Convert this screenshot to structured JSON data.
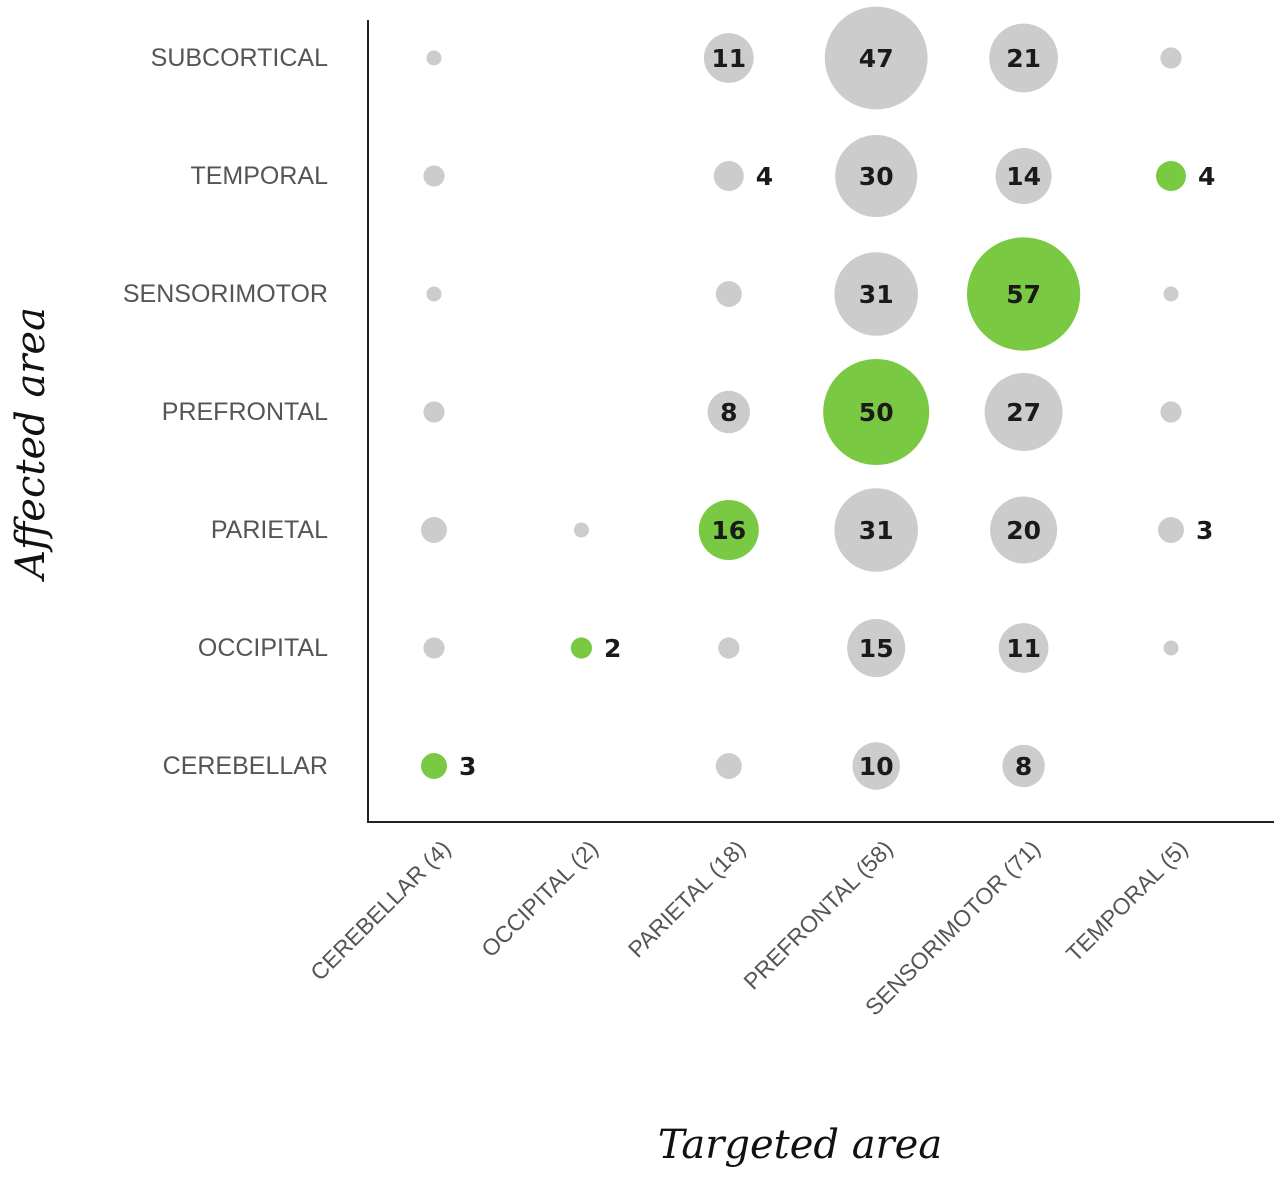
{
  "chart_data": {
    "type": "bubble-matrix",
    "xlabel": "Targeted area",
    "ylabel": "Affected area",
    "x_categories": [
      "CEREBELLAR (4)",
      "OCCIPITAL (2)",
      "PARIETAL (18)",
      "PREFRONTAL (58)",
      "SENSORIMOTOR (71)",
      "TEMPORAL (5)"
    ],
    "y_categories": [
      "SUBCORTICAL",
      "TEMPORAL",
      "SENSORIMOTOR",
      "PREFRONTAL",
      "PARIETAL",
      "OCCIPITAL",
      "CEREBELLAR"
    ],
    "colors": {
      "match": "#7ac943",
      "other": "#cccccc"
    },
    "cells": [
      {
        "x": "CEREBELLAR (4)",
        "y": "SUBCORTICAL",
        "value": 1,
        "shown": false,
        "match": false
      },
      {
        "x": "PARIETAL (18)",
        "y": "SUBCORTICAL",
        "value": 11,
        "shown": true,
        "match": false
      },
      {
        "x": "PREFRONTAL (58)",
        "y": "SUBCORTICAL",
        "value": 47,
        "shown": true,
        "match": false
      },
      {
        "x": "SENSORIMOTOR (71)",
        "y": "SUBCORTICAL",
        "value": 21,
        "shown": true,
        "match": false
      },
      {
        "x": "TEMPORAL (5)",
        "y": "SUBCORTICAL",
        "value": 2,
        "shown": false,
        "match": false
      },
      {
        "x": "CEREBELLAR (4)",
        "y": "TEMPORAL",
        "value": 2,
        "shown": false,
        "match": false
      },
      {
        "x": "PARIETAL (18)",
        "y": "TEMPORAL",
        "value": 4,
        "shown": true,
        "match": false
      },
      {
        "x": "PREFRONTAL (58)",
        "y": "TEMPORAL",
        "value": 30,
        "shown": true,
        "match": false
      },
      {
        "x": "SENSORIMOTOR (71)",
        "y": "TEMPORAL",
        "value": 14,
        "shown": true,
        "match": false
      },
      {
        "x": "TEMPORAL (5)",
        "y": "TEMPORAL",
        "value": 4,
        "shown": true,
        "match": true
      },
      {
        "x": "CEREBELLAR (4)",
        "y": "SENSORIMOTOR",
        "value": 1,
        "shown": false,
        "match": false
      },
      {
        "x": "PARIETAL (18)",
        "y": "SENSORIMOTOR",
        "value": 3,
        "shown": false,
        "match": false
      },
      {
        "x": "PREFRONTAL (58)",
        "y": "SENSORIMOTOR",
        "value": 31,
        "shown": true,
        "match": false
      },
      {
        "x": "SENSORIMOTOR (71)",
        "y": "SENSORIMOTOR",
        "value": 57,
        "shown": true,
        "match": true
      },
      {
        "x": "TEMPORAL (5)",
        "y": "SENSORIMOTOR",
        "value": 1,
        "shown": false,
        "match": false
      },
      {
        "x": "CEREBELLAR (4)",
        "y": "PREFRONTAL",
        "value": 2,
        "shown": false,
        "match": false
      },
      {
        "x": "PARIETAL (18)",
        "y": "PREFRONTAL",
        "value": 8,
        "shown": true,
        "match": false
      },
      {
        "x": "PREFRONTAL (58)",
        "y": "PREFRONTAL",
        "value": 50,
        "shown": true,
        "match": true
      },
      {
        "x": "SENSORIMOTOR (71)",
        "y": "PREFRONTAL",
        "value": 27,
        "shown": true,
        "match": false
      },
      {
        "x": "TEMPORAL (5)",
        "y": "PREFRONTAL",
        "value": 2,
        "shown": false,
        "match": false
      },
      {
        "x": "CEREBELLAR (4)",
        "y": "PARIETAL",
        "value": 3,
        "shown": false,
        "match": false
      },
      {
        "x": "OCCIPITAL (2)",
        "y": "PARIETAL",
        "value": 1,
        "shown": false,
        "match": false
      },
      {
        "x": "PARIETAL (18)",
        "y": "PARIETAL",
        "value": 16,
        "shown": true,
        "match": true
      },
      {
        "x": "PREFRONTAL (58)",
        "y": "PARIETAL",
        "value": 31,
        "shown": true,
        "match": false
      },
      {
        "x": "SENSORIMOTOR (71)",
        "y": "PARIETAL",
        "value": 20,
        "shown": true,
        "match": false
      },
      {
        "x": "TEMPORAL (5)",
        "y": "PARIETAL",
        "value": 3,
        "shown": true,
        "match": false
      },
      {
        "x": "CEREBELLAR (4)",
        "y": "OCCIPITAL",
        "value": 2,
        "shown": false,
        "match": false
      },
      {
        "x": "OCCIPITAL (2)",
        "y": "OCCIPITAL",
        "value": 2,
        "shown": true,
        "match": true
      },
      {
        "x": "PARIETAL (18)",
        "y": "OCCIPITAL",
        "value": 2,
        "shown": false,
        "match": false
      },
      {
        "x": "PREFRONTAL (58)",
        "y": "OCCIPITAL",
        "value": 15,
        "shown": true,
        "match": false
      },
      {
        "x": "SENSORIMOTOR (71)",
        "y": "OCCIPITAL",
        "value": 11,
        "shown": true,
        "match": false
      },
      {
        "x": "TEMPORAL (5)",
        "y": "OCCIPITAL",
        "value": 1,
        "shown": false,
        "match": false
      },
      {
        "x": "CEREBELLAR (4)",
        "y": "CEREBELLAR",
        "value": 3,
        "shown": true,
        "match": true
      },
      {
        "x": "PARIETAL (18)",
        "y": "CEREBELLAR",
        "value": 3,
        "shown": false,
        "match": false
      },
      {
        "x": "PREFRONTAL (58)",
        "y": "CEREBELLAR",
        "value": 10,
        "shown": true,
        "match": false
      },
      {
        "x": "SENSORIMOTOR (71)",
        "y": "CEREBELLAR",
        "value": 8,
        "shown": true,
        "match": false
      }
    ]
  }
}
